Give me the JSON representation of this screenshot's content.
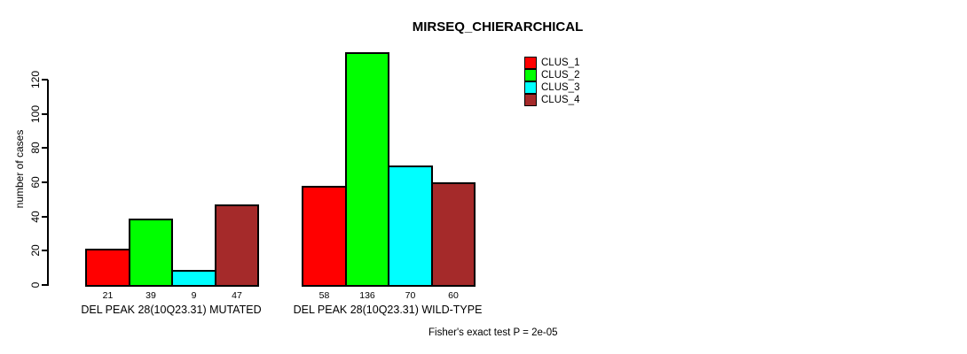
{
  "chart_data": {
    "type": "bar",
    "title": "MIRSEQ_CHIERARCHICAL",
    "ylabel": "number of cases",
    "xlabel": "",
    "yticks": [
      0,
      20,
      40,
      60,
      80,
      100,
      120
    ],
    "ylim": [
      0,
      140
    ],
    "grid": false,
    "legend_position": "top-right",
    "categories": [
      "DEL PEAK 28(10Q23.31) MUTATED",
      "DEL PEAK 28(10Q23.31) WILD-TYPE"
    ],
    "groups": [
      {
        "label": "DEL PEAK 28(10Q23.31) MUTATED",
        "values": [
          21,
          39,
          9,
          47
        ]
      },
      {
        "label": "DEL PEAK 28(10Q23.31) WILD-TYPE",
        "values": [
          58,
          136,
          70,
          60
        ]
      }
    ],
    "series": [
      {
        "name": "CLUS_1",
        "color": "#FF0000"
      },
      {
        "name": "CLUS_2",
        "color": "#00FF00"
      },
      {
        "name": "CLUS_3",
        "color": "#00FFFF"
      },
      {
        "name": "CLUS_4",
        "color": "#A52A2A"
      }
    ],
    "footnote": "Fisher's exact test P = 2e-05",
    "colors": {
      "background": "#FFFFFF",
      "axis": "#000000",
      "bar_border": "#000000"
    }
  }
}
